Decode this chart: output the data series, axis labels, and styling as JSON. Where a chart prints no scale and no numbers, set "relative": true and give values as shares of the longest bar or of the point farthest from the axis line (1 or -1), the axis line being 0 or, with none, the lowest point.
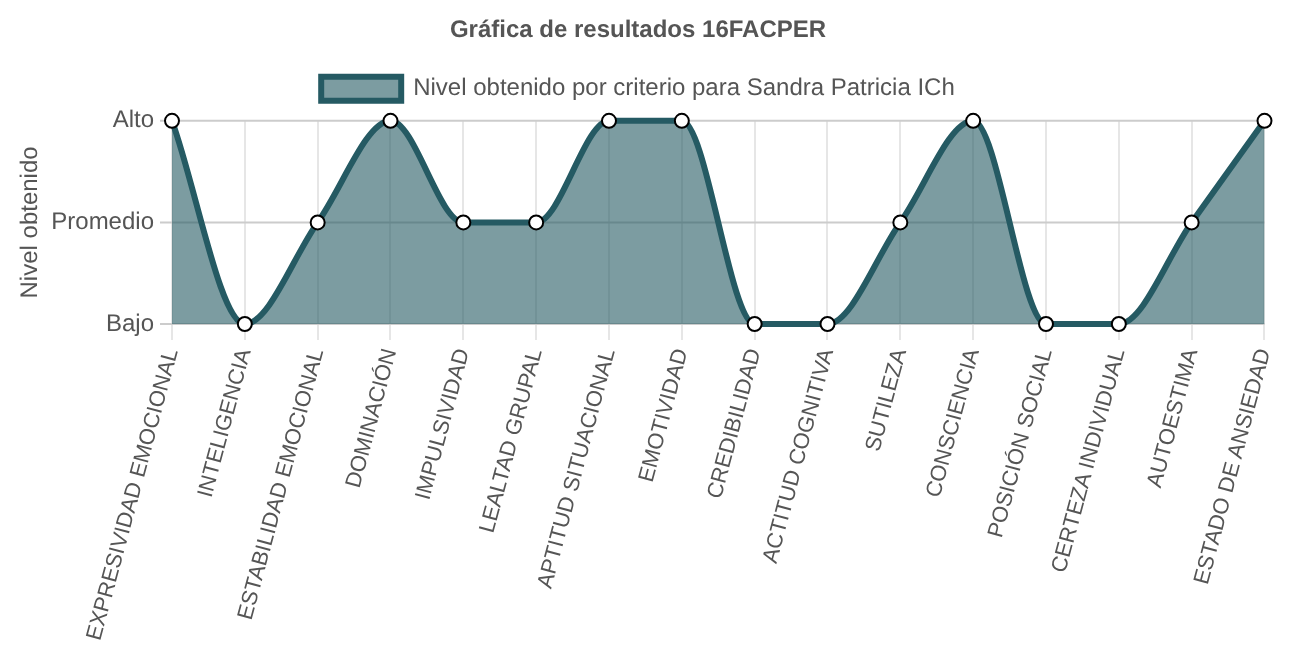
{
  "chart_data": {
    "type": "area",
    "title": "Gráfica de resultados 16FACPER",
    "ylabel": "Nivel obtenido",
    "categories": [
      "EXPRESIVIDAD EMOCIONAL",
      "INTELIGENCIA",
      "ESTABILIDAD EMOCIONAL",
      "DOMINACIÓN",
      "IMPULSIVIDAD",
      "LEALTAD GRUPAL",
      "APTITUD SITUACIONAL",
      "EMOTIVIDAD",
      "CREDIBILIDAD",
      "ACTITUD COGNITIVA",
      "SUTILEZA",
      "CONSCIENCIA",
      "POSICIÓN SOCIAL",
      "CERTEZA INDIVIDUAL",
      "AUTOESTIMA",
      "ESTADO DE ANSIEDAD"
    ],
    "series": [
      {
        "name": "Nivel obtenido por criterio para Sandra Patricia ICh",
        "color": "#255a63",
        "values": [
          1,
          0,
          0.5,
          1,
          0.5,
          0.5,
          1,
          1,
          0,
          0,
          0.5,
          1,
          0,
          0,
          0.5,
          1
        ]
      }
    ],
    "relative": true,
    "ref_lines": [
      {
        "axis": "y",
        "value": 0,
        "label": "Bajo",
        "color": "#cccccc"
      },
      {
        "axis": "y",
        "value": 0.5,
        "label": "Promedio",
        "color": "#cccccc"
      },
      {
        "axis": "y",
        "value": 1,
        "label": "Alto",
        "color": "#cccccc"
      }
    ],
    "grid": "x",
    "legend": "top",
    "marker": "circle"
  }
}
